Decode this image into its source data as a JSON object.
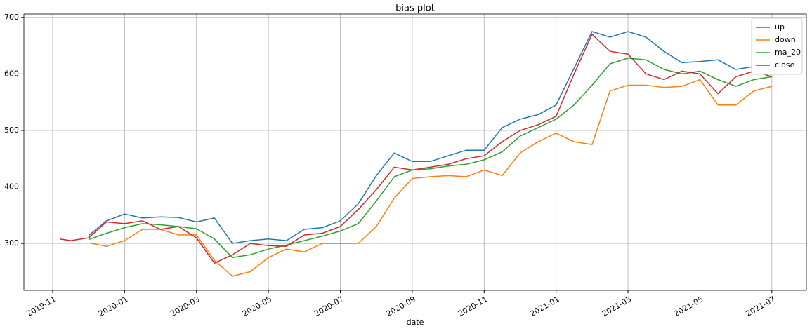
{
  "chart_data": {
    "type": "line",
    "title": "bias plot",
    "x_label": "date",
    "x": [
      0.2,
      0.5,
      1.0,
      1.5,
      2.0,
      2.5,
      3.0,
      3.5,
      4.0,
      4.5,
      5.0,
      5.5,
      6.0,
      6.5,
      7.0,
      7.5,
      8.0,
      8.5,
      9.0,
      9.5,
      10.0,
      10.5,
      11.0,
      11.5,
      12.0,
      12.5,
      13.0,
      13.5,
      14.0,
      14.5,
      15.0,
      15.5,
      16.0,
      16.5,
      17.0,
      17.5,
      18.0,
      18.5,
      19.0,
      19.5,
      20.0
    ],
    "series": [
      {
        "name": "up",
        "color": "#1f77b4",
        "values": [
          null,
          null,
          314,
          340,
          352,
          345,
          347,
          346,
          338,
          345,
          300,
          305,
          308,
          305,
          325,
          328,
          340,
          370,
          420,
          460,
          445,
          445,
          455,
          465,
          465,
          505,
          520,
          528,
          545,
          610,
          675,
          665,
          675,
          665,
          640,
          620,
          622,
          625,
          608,
          613,
          610
        ]
      },
      {
        "name": "down",
        "color": "#ff7f0e",
        "values": [
          null,
          null,
          301,
          295,
          305,
          325,
          325,
          315,
          315,
          270,
          242,
          250,
          275,
          290,
          285,
          300,
          300,
          300,
          330,
          380,
          415,
          418,
          420,
          418,
          430,
          420,
          460,
          480,
          495,
          480,
          475,
          570,
          580,
          580,
          576,
          578,
          590,
          545,
          545,
          570,
          578
        ]
      },
      {
        "name": "ma_20",
        "color": "#2ca02c",
        "values": [
          null,
          null,
          307,
          318,
          328,
          335,
          333,
          330,
          326,
          308,
          275,
          280,
          290,
          297,
          305,
          313,
          322,
          335,
          375,
          418,
          430,
          432,
          437,
          440,
          448,
          462,
          490,
          505,
          520,
          545,
          580,
          618,
          628,
          625,
          608,
          600,
          605,
          590,
          578,
          590,
          595
        ]
      },
      {
        "name": "close",
        "color": "#d62728",
        "values": [
          308,
          305,
          310,
          338,
          335,
          340,
          325,
          330,
          310,
          265,
          280,
          300,
          296,
          295,
          315,
          318,
          330,
          360,
          395,
          435,
          430,
          435,
          440,
          450,
          455,
          480,
          500,
          510,
          525,
          600,
          670,
          640,
          635,
          600,
          590,
          605,
          600,
          565,
          595,
          605,
          595
        ]
      }
    ],
    "xlim": [
      -0.8,
      20.96
    ],
    "xticks": [
      {
        "value": 0,
        "label": "2019-11"
      },
      {
        "value": 2,
        "label": "2020-01"
      },
      {
        "value": 4,
        "label": "2020-03"
      },
      {
        "value": 6,
        "label": "2020-05"
      },
      {
        "value": 8,
        "label": "2020-07"
      },
      {
        "value": 10,
        "label": "2020-09"
      },
      {
        "value": 12,
        "label": "2020-11"
      },
      {
        "value": 14,
        "label": "2021-01"
      },
      {
        "value": 16,
        "label": "2021-03"
      },
      {
        "value": 18,
        "label": "2021-05"
      },
      {
        "value": 20,
        "label": "2021-07"
      }
    ],
    "ylim": [
      217,
      706
    ],
    "yticks": [
      300,
      400,
      500,
      600,
      700
    ],
    "grid": true,
    "legend": "upper right"
  }
}
